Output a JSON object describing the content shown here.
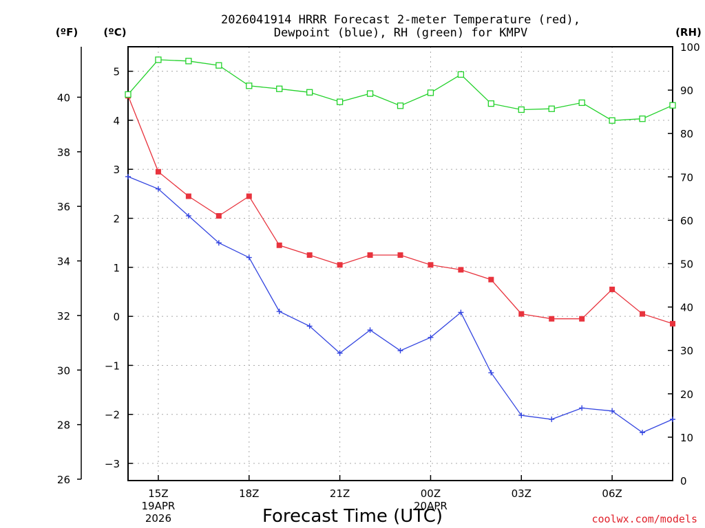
{
  "chart_data": {
    "type": "line",
    "title": [
      "2026041914 HRRR Forecast 2-meter Temperature (red),",
      "Dewpoint (blue), RH (green) for KMPV"
    ],
    "xlabel": "Forecast Time (UTC)",
    "units": {
      "fahrenheit": "(ºF)",
      "celsius": "(ºC)",
      "rh": "(RH)"
    },
    "x_hours_utc": [
      14,
      15,
      16,
      17,
      18,
      19,
      20,
      21,
      22,
      23,
      24,
      25,
      26,
      27,
      28,
      29,
      30,
      31,
      32
    ],
    "x_ticks": [
      {
        "hour": 15,
        "label": "15Z",
        "date": "19APR",
        "year": "2026"
      },
      {
        "hour": 18,
        "label": "18Z"
      },
      {
        "hour": 21,
        "label": "21Z"
      },
      {
        "hour": 24,
        "label": "00Z",
        "date": "20APR"
      },
      {
        "hour": 27,
        "label": "03Z"
      },
      {
        "hour": 30,
        "label": "06Z"
      }
    ],
    "xlim": [
      14,
      32
    ],
    "celsius_axis": {
      "ylim": [
        -3.35,
        5.5
      ],
      "ticks": [
        -3,
        -2,
        -1,
        0,
        1,
        2,
        3,
        4,
        5
      ]
    },
    "fahrenheit_axis": {
      "ylim": [
        26,
        41.9
      ],
      "ticks": [
        26,
        28,
        30,
        32,
        34,
        36,
        38,
        40
      ]
    },
    "rh_axis": {
      "ylim": [
        0,
        100
      ],
      "ticks": [
        0,
        10,
        20,
        30,
        40,
        50,
        60,
        70,
        80,
        90,
        100
      ]
    },
    "series": [
      {
        "name": "2-meter Temperature",
        "axis": "celsius",
        "color": "#e8333d",
        "marker": "filled-square",
        "values": [
          4.5,
          2.95,
          2.45,
          2.05,
          2.45,
          1.45,
          1.25,
          1.05,
          1.25,
          1.25,
          1.05,
          0.95,
          0.75,
          0.05,
          -0.05,
          -0.05,
          0.55,
          0.05,
          -0.15
        ]
      },
      {
        "name": "Dewpoint",
        "axis": "celsius",
        "color": "#3345e0",
        "marker": "plus",
        "values": [
          2.85,
          2.6,
          2.05,
          1.5,
          1.2,
          0.1,
          -0.2,
          -0.75,
          -0.28,
          -0.7,
          -0.43,
          0.08,
          -1.15,
          -2.02,
          -2.1,
          -1.87,
          -1.93,
          -2.37,
          -2.1
        ]
      },
      {
        "name": "RH",
        "axis": "rh",
        "color": "#22d12a",
        "marker": "open-square",
        "values": [
          89,
          97,
          96.7,
          95.7,
          91,
          90.3,
          89.5,
          87.3,
          89.2,
          86.4,
          89.4,
          93.6,
          86.9,
          85.5,
          85.7,
          87.1,
          83,
          83.4,
          86.5
        ]
      }
    ],
    "credit": "coolwx.com/models"
  }
}
